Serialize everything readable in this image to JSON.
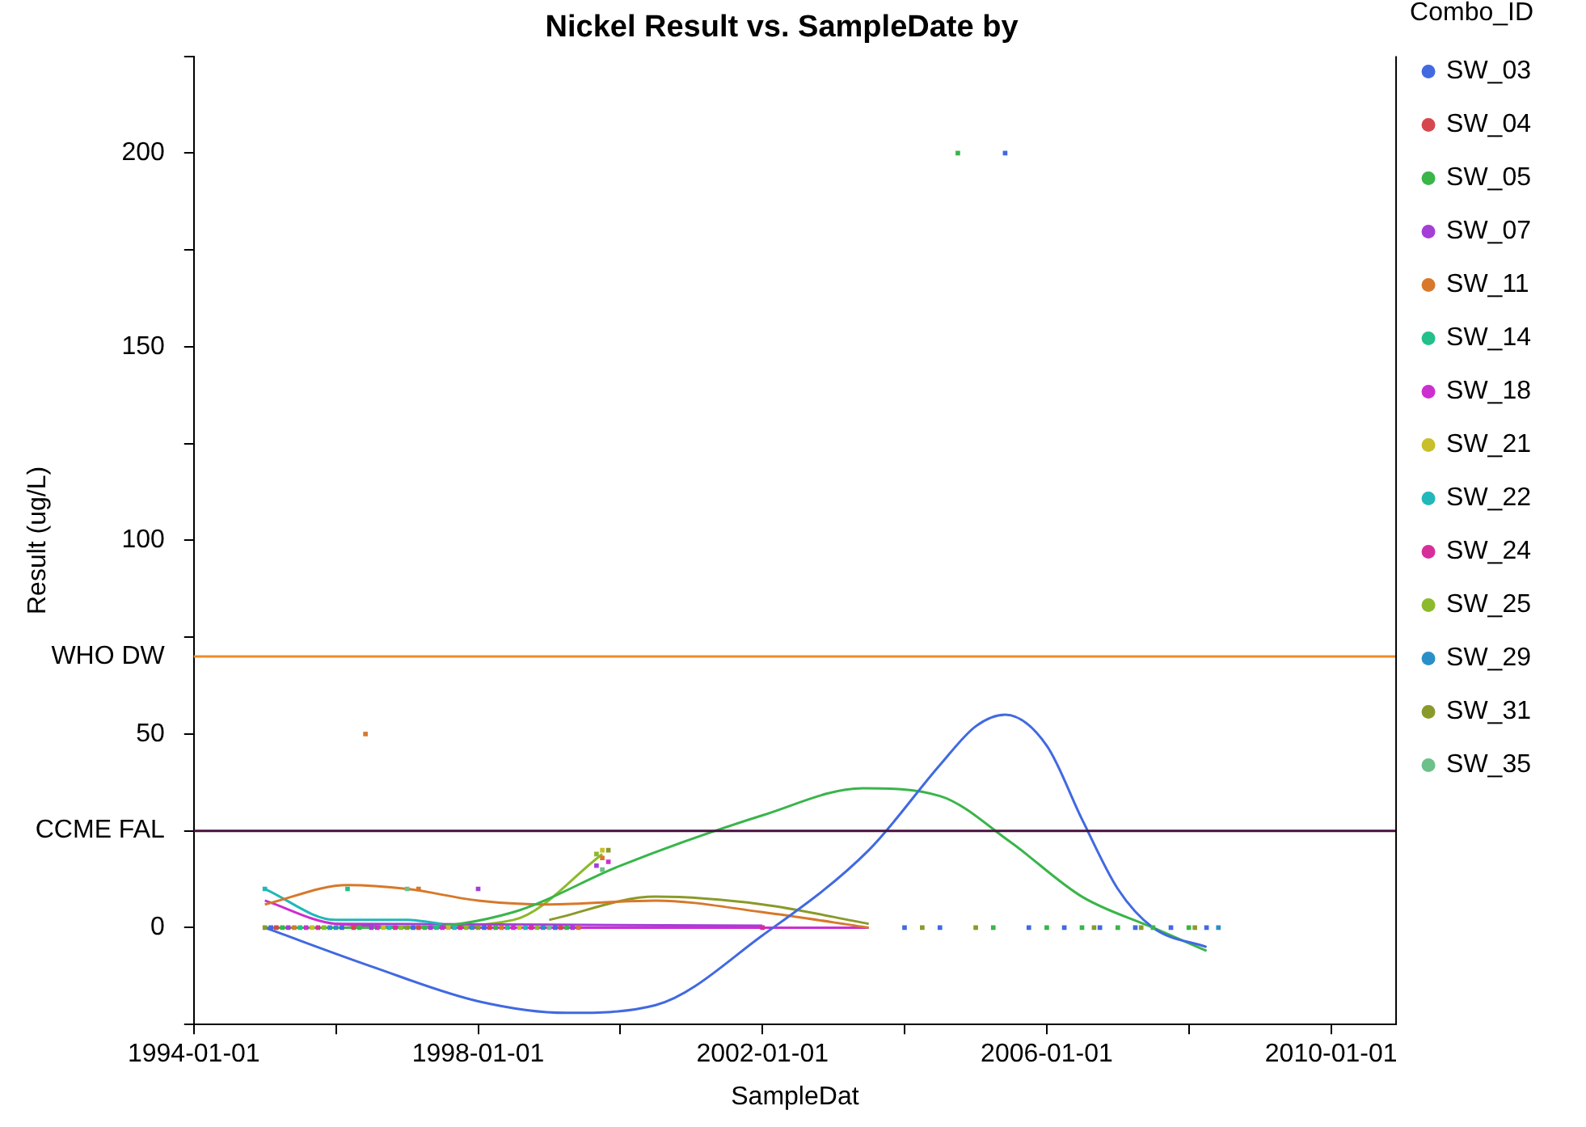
{
  "chart_data": {
    "type": "scatter",
    "title": "Nickel Result vs. SampleDate by",
    "xlabel": "SampleDat",
    "ylabel": "Result (ug/L)",
    "legend_title": "Combo_ID",
    "legend": "right",
    "marker": "square",
    "grid": false,
    "xlim": [
      "1994-01-01",
      "2010-12-01"
    ],
    "xticks": [
      "1994-01-01",
      {
        "value": "1996-01-01",
        "label": null
      },
      "1998-01-01",
      {
        "value": "2000-01-01",
        "label": null
      },
      "2002-01-01",
      {
        "value": "2004-01-01",
        "label": null
      },
      "2006-01-01",
      {
        "value": "2008-01-01",
        "label": null
      },
      "2010-01-01"
    ],
    "ylim": [
      -25,
      225
    ],
    "yticks": [
      {
        "value": -25,
        "label": null
      },
      0,
      {
        "value": 25,
        "label": null
      },
      50,
      {
        "value": 75,
        "label": null
      },
      100,
      {
        "value": 125,
        "label": null
      },
      150,
      {
        "value": 175,
        "label": null
      },
      200,
      {
        "value": 225,
        "label": null
      }
    ],
    "ref_lines": [
      {
        "axis": "y",
        "value": 70,
        "label": "WHO DW",
        "color": "#f08a24"
      },
      {
        "axis": "y",
        "value": 25,
        "label": "CCME FAL",
        "color": "#4a1040"
      }
    ],
    "series": [
      {
        "name": "SW_03",
        "color": "#4169e1",
        "x": [
          "1995-02",
          "1996-02",
          "1997-02",
          "1998-02",
          "1999-02",
          "2004-01",
          "2004-07",
          "2005-06",
          "2005-10",
          "2006-04",
          "2006-10",
          "2007-04",
          "2007-10",
          "2008-04"
        ],
        "values": [
          0,
          0,
          0,
          0,
          0,
          0,
          0,
          200,
          0,
          0,
          0,
          0,
          0,
          0
        ]
      },
      {
        "name": "SW_04",
        "color": "#d6464f",
        "x": [
          "1995-03",
          "1996-04",
          "1997-03",
          "1998-03",
          "1999-03"
        ],
        "values": [
          0,
          0,
          0,
          0,
          0
        ]
      },
      {
        "name": "SW_05",
        "color": "#39b54a",
        "x": [
          "1995-04",
          "1996-05",
          "1997-04",
          "1998-04",
          "1999-04",
          "2004-10",
          "2005-04",
          "2006-01",
          "2006-07",
          "2007-01",
          "2007-07",
          "2008-01"
        ],
        "values": [
          0,
          0,
          0,
          0,
          0,
          200,
          0,
          0,
          0,
          0,
          0,
          0
        ]
      },
      {
        "name": "SW_07",
        "color": "#a43ed6",
        "x": [
          "1995-05",
          "1996-07",
          "1997-05",
          "1998-01",
          "1999-05",
          "1999-09"
        ],
        "values": [
          0,
          0,
          0,
          10,
          0,
          16
        ]
      },
      {
        "name": "SW_11",
        "color": "#d7782a",
        "x": [
          "1995-06",
          "1996-06",
          "1997-03",
          "1998-05",
          "1999-06",
          "1999-10"
        ],
        "values": [
          0,
          50,
          10,
          0,
          0,
          18
        ]
      },
      {
        "name": "SW_14",
        "color": "#22c08a",
        "x": [
          "1995-07",
          "1996-03",
          "1997-06",
          "1998-06"
        ],
        "values": [
          0,
          10,
          0,
          0
        ]
      },
      {
        "name": "SW_18",
        "color": "#cc2ed0",
        "x": [
          "1995-08",
          "1996-08",
          "1997-07",
          "1998-07",
          "1999-11"
        ],
        "values": [
          0,
          0,
          0,
          0,
          17
        ]
      },
      {
        "name": "SW_21",
        "color": "#c8bf2a",
        "x": [
          "1995-09",
          "1996-09",
          "1997-08",
          "1998-08",
          "1999-10"
        ],
        "values": [
          0,
          0,
          0,
          0,
          20
        ]
      },
      {
        "name": "SW_22",
        "color": "#20b8b8",
        "x": [
          "1995-01",
          "1996-10",
          "1997-09",
          "1998-09"
        ],
        "values": [
          10,
          0,
          0,
          0
        ]
      },
      {
        "name": "SW_24",
        "color": "#d62e9a",
        "x": [
          "1995-10",
          "1996-11",
          "1997-10",
          "1998-10",
          "2002-01"
        ],
        "values": [
          0,
          0,
          0,
          0,
          0
        ]
      },
      {
        "name": "SW_25",
        "color": "#8cba2a",
        "x": [
          "1995-11",
          "1996-12",
          "1997-11",
          "1998-11",
          "1999-09"
        ],
        "values": [
          0,
          0,
          0,
          0,
          19
        ]
      },
      {
        "name": "SW_29",
        "color": "#2a8fc8",
        "x": [
          "1995-12",
          "1996-01",
          "1997-12",
          "1998-12",
          "2008-06"
        ],
        "values": [
          0,
          0,
          0,
          0,
          0
        ]
      },
      {
        "name": "SW_31",
        "color": "#8a9a2a",
        "x": [
          "1995-01",
          "1997-01",
          "1998-01",
          "1999-11",
          "2004-04",
          "2005-01",
          "2006-09",
          "2007-05",
          "2008-02"
        ],
        "values": [
          0,
          0,
          0,
          20,
          0,
          0,
          0,
          0,
          0
        ]
      },
      {
        "name": "SW_35",
        "color": "#6cc08a",
        "x": [
          "1997-01",
          "1999-01",
          "1999-10"
        ],
        "values": [
          10,
          0,
          15
        ]
      },
      {
        "type": "line",
        "marker": "none",
        "color": "#4169e1",
        "x": [
          "1995-01",
          "1996-07",
          "1998-01",
          "1999-04",
          "2000-07",
          "2002-01",
          "2003-07",
          "2004-07",
          "2005-01",
          "2005-06",
          "2006-01",
          "2006-07",
          "2007-01",
          "2007-07",
          "2008-04"
        ],
        "values": [
          0,
          -10,
          -19,
          -22,
          -20,
          -2,
          20,
          42,
          52,
          55,
          47,
          28,
          10,
          0,
          -5
        ]
      },
      {
        "type": "line",
        "marker": "none",
        "color": "#39b54a",
        "x": [
          "1995-01",
          "1997-01",
          "1998-07",
          "2000-01",
          "2002-01",
          "2003-06",
          "2004-07",
          "2005-07",
          "2006-07",
          "2007-07",
          "2008-04"
        ],
        "values": [
          0,
          0,
          4,
          16,
          29,
          36,
          34,
          22,
          8,
          0,
          -6
        ]
      },
      {
        "type": "line",
        "marker": "none",
        "color": "#d7782a",
        "x": [
          "1995-01",
          "1996-03",
          "1997-01",
          "1998-01",
          "1999-01",
          "2000-07",
          "2002-01",
          "2003-07"
        ],
        "values": [
          6,
          11,
          10,
          7,
          6,
          7,
          4,
          0
        ]
      },
      {
        "type": "line",
        "marker": "none",
        "color": "#20b8b8",
        "x": [
          "1995-01",
          "1996-01",
          "1997-01",
          "1997-07"
        ],
        "values": [
          10,
          2,
          2,
          1
        ]
      },
      {
        "type": "line",
        "marker": "none",
        "color": "#cc2ed0",
        "x": [
          "1995-01",
          "1996-01",
          "1998-01",
          "2003-07"
        ],
        "values": [
          7,
          1,
          0,
          0
        ]
      },
      {
        "type": "line",
        "marker": "none",
        "color": "#a43ed6",
        "x": [
          "1996-01",
          "2002-01"
        ],
        "values": [
          1,
          0.5
        ]
      },
      {
        "type": "line",
        "marker": "none",
        "color": "#8cba2a",
        "x": [
          "1997-01",
          "1998-07",
          "1999-10"
        ],
        "values": [
          0,
          2,
          19
        ]
      },
      {
        "type": "line",
        "marker": "none",
        "color": "#8a9a2a",
        "x": [
          "1999-01",
          "2000-07",
          "2002-01",
          "2003-07"
        ],
        "values": [
          2,
          8,
          6,
          1
        ]
      }
    ]
  }
}
